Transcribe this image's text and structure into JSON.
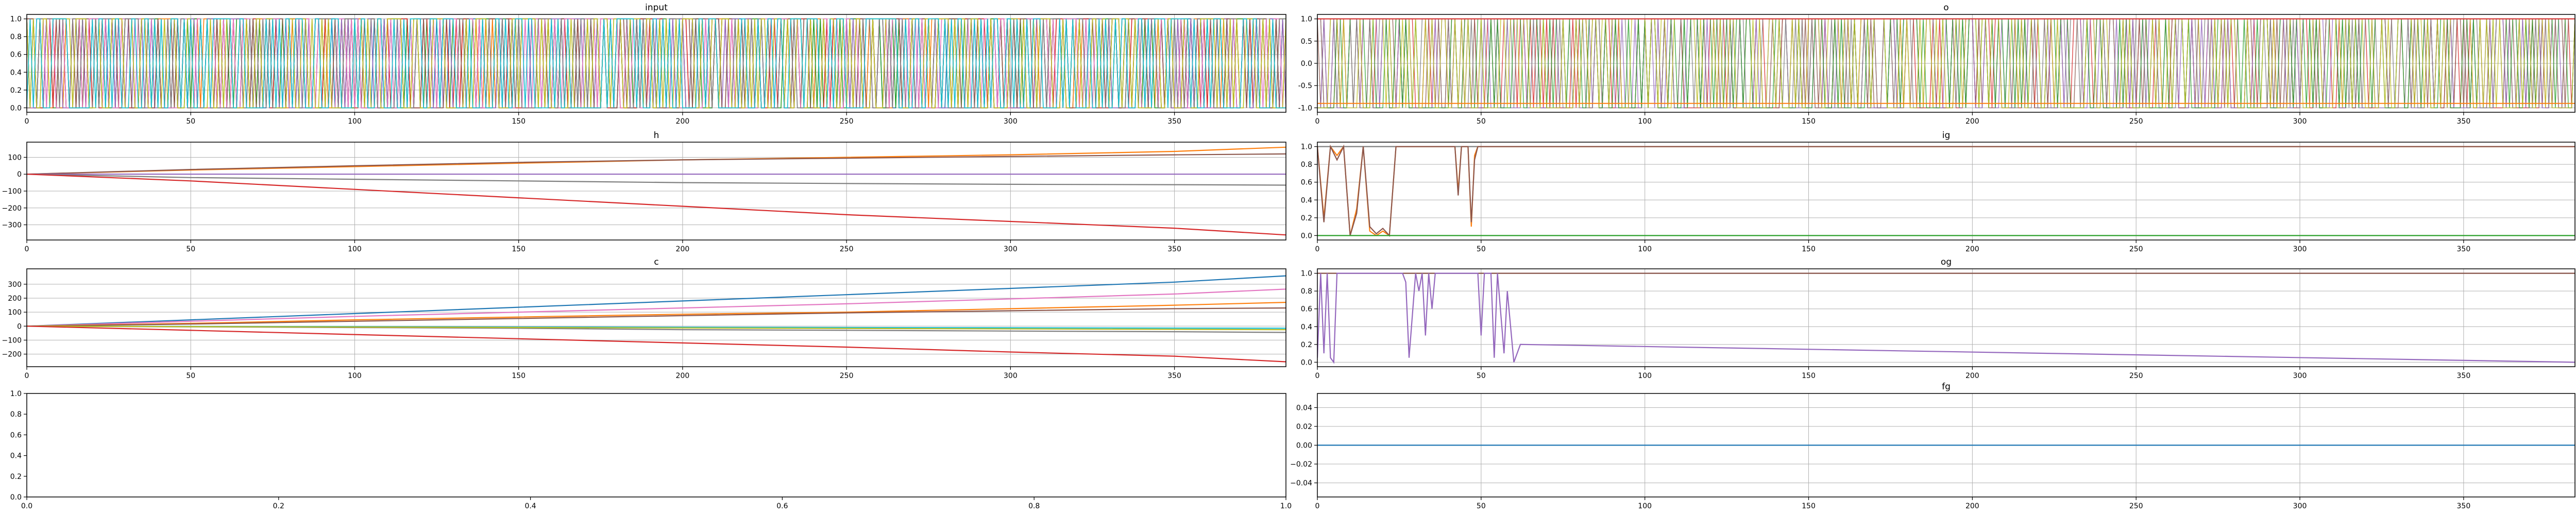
{
  "figure": {
    "colors": [
      "#1f77b4",
      "#ff7f0e",
      "#2ca02c",
      "#d62728",
      "#9467bd",
      "#8c564b",
      "#e377c2",
      "#7f7f7f",
      "#bcbd22",
      "#17becf"
    ]
  },
  "chart_data": [
    {
      "id": "input",
      "type": "line",
      "title": "input",
      "xlim": [
        0,
        384
      ],
      "ylim": [
        -0.05,
        1.05
      ],
      "xticks": [
        0,
        50,
        100,
        150,
        200,
        250,
        300,
        350
      ],
      "yticks": [
        0.0,
        0.2,
        0.4,
        0.6,
        0.8,
        1.0
      ],
      "ytick_labels": [
        "0.0",
        "0.2",
        "0.4",
        "0.6",
        "0.8",
        "1.0"
      ],
      "grid": true,
      "series_count": 10,
      "pattern": "dense binary 0/1 switching on every step, one active channel per step",
      "x": [
        0,
        384
      ],
      "series": [
        {
          "values": [
            0,
            1
          ]
        }
      ]
    },
    {
      "id": "o",
      "type": "line",
      "title": "o",
      "xlim": [
        0,
        384
      ],
      "ylim": [
        -1.1,
        1.1
      ],
      "xticks": [
        0,
        50,
        100,
        150,
        200,
        250,
        300,
        350
      ],
      "yticks": [
        -1.0,
        -0.5,
        0.0,
        0.5,
        1.0
      ],
      "ytick_labels": [
        "-1.0",
        "-0.5",
        "0.0",
        "0.5",
        "1.0"
      ],
      "grid": true,
      "pattern": "dense switching between -1 and 1",
      "series": [
        {
          "color_index": 3,
          "x": [
            0,
            384
          ],
          "values": [
            1,
            1
          ]
        },
        {
          "color_index": 1,
          "x": [
            0,
            384
          ],
          "values": [
            -0.9,
            -0.9
          ]
        }
      ]
    },
    {
      "id": "h",
      "type": "line",
      "title": "h",
      "xlim": [
        0,
        384
      ],
      "ylim": [
        -390,
        190
      ],
      "xticks": [
        0,
        50,
        100,
        150,
        200,
        250,
        300,
        350
      ],
      "yticks": [
        -300,
        -200,
        -100,
        0,
        100
      ],
      "ytick_labels": [
        "−300",
        "−200",
        "−100",
        "0",
        "100"
      ],
      "grid": true,
      "series": [
        {
          "color_index": 1,
          "x": [
            0,
            50,
            100,
            150,
            200,
            250,
            300,
            350,
            384
          ],
          "values": [
            0,
            25,
            45,
            65,
            85,
            100,
            115,
            135,
            160
          ]
        },
        {
          "color_index": 5,
          "x": [
            0,
            50,
            100,
            150,
            200,
            250,
            300,
            350,
            384
          ],
          "values": [
            0,
            28,
            50,
            70,
            85,
            95,
            105,
            115,
            120
          ]
        },
        {
          "color_index": 4,
          "x": [
            0,
            384
          ],
          "values": [
            0,
            0
          ]
        },
        {
          "color_index": 7,
          "x": [
            0,
            50,
            100,
            150,
            200,
            250,
            300,
            350,
            384
          ],
          "values": [
            0,
            -20,
            -30,
            -40,
            -50,
            -55,
            -60,
            -62,
            -65
          ]
        },
        {
          "color_index": 3,
          "x": [
            0,
            50,
            100,
            150,
            200,
            250,
            300,
            350,
            384
          ],
          "values": [
            0,
            -40,
            -90,
            -140,
            -190,
            -240,
            -280,
            -320,
            -360
          ]
        }
      ]
    },
    {
      "id": "ig",
      "type": "line",
      "title": "ig",
      "xlim": [
        0,
        384
      ],
      "ylim": [
        -0.05,
        1.05
      ],
      "xticks": [
        0,
        50,
        100,
        150,
        200,
        250,
        300,
        350
      ],
      "yticks": [
        0.0,
        0.2,
        0.4,
        0.6,
        0.8,
        1.0
      ],
      "ytick_labels": [
        "0.0",
        "0.2",
        "0.4",
        "0.6",
        "0.8",
        "1.0"
      ],
      "grid": true,
      "series": [
        {
          "color_index": 7,
          "x": [
            0,
            384
          ],
          "values": [
            1,
            1
          ]
        },
        {
          "color_index": 1,
          "x": [
            0,
            2,
            4,
            6,
            8,
            10,
            12,
            14,
            16,
            18,
            20,
            22,
            24,
            42,
            43,
            44,
            46,
            47,
            48,
            49,
            50,
            384
          ],
          "values": [
            1,
            0.2,
            1,
            0.9,
            1,
            0,
            0.3,
            1,
            0.05,
            0,
            0.05,
            0,
            1,
            1,
            0.5,
            1,
            1,
            0.1,
            0.9,
            1,
            1,
            1
          ]
        },
        {
          "color_index": 5,
          "x": [
            0,
            2,
            4,
            6,
            8,
            10,
            12,
            14,
            16,
            18,
            20,
            22,
            24,
            42,
            43,
            44,
            46,
            47,
            48,
            49,
            50,
            384
          ],
          "values": [
            1,
            0.15,
            1,
            0.85,
            1,
            0,
            0.25,
            1,
            0.1,
            0.02,
            0.08,
            0,
            1,
            1,
            0.45,
            1,
            1,
            0.15,
            0.85,
            1,
            1,
            1
          ]
        },
        {
          "color_index": 2,
          "x": [
            0,
            384
          ],
          "values": [
            0,
            0
          ]
        }
      ]
    },
    {
      "id": "c",
      "type": "line",
      "title": "c",
      "xlim": [
        0,
        384
      ],
      "ylim": [
        -290,
        410
      ],
      "xticks": [
        0,
        50,
        100,
        150,
        200,
        250,
        300,
        350
      ],
      "yticks": [
        -200,
        -100,
        0,
        100,
        200,
        300
      ],
      "ytick_labels": [
        "−200",
        "−100",
        "0",
        "100",
        "200",
        "300"
      ],
      "grid": true,
      "series": [
        {
          "color_index": 0,
          "x": [
            0,
            50,
            100,
            150,
            200,
            250,
            300,
            350,
            384
          ],
          "values": [
            0,
            45,
            90,
            135,
            180,
            225,
            270,
            315,
            360
          ]
        },
        {
          "color_index": 6,
          "x": [
            0,
            50,
            100,
            150,
            200,
            250,
            300,
            350,
            384
          ],
          "values": [
            0,
            35,
            70,
            100,
            130,
            160,
            195,
            230,
            265
          ]
        },
        {
          "color_index": 1,
          "x": [
            0,
            50,
            100,
            150,
            200,
            250,
            300,
            350,
            384
          ],
          "values": [
            0,
            20,
            45,
            65,
            85,
            100,
            125,
            150,
            170
          ]
        },
        {
          "color_index": 5,
          "x": [
            0,
            50,
            100,
            150,
            200,
            250,
            300,
            350,
            384
          ],
          "values": [
            0,
            15,
            35,
            55,
            75,
            95,
            110,
            125,
            130
          ]
        },
        {
          "color_index": 7,
          "x": [
            0,
            50,
            100,
            150,
            200,
            250,
            300,
            350,
            384
          ],
          "values": [
            0,
            -5,
            -10,
            -15,
            -25,
            -30,
            -35,
            -40,
            -45
          ]
        },
        {
          "color_index": 9,
          "x": [
            0,
            384
          ],
          "values": [
            0,
            -15
          ]
        },
        {
          "color_index": 8,
          "x": [
            0,
            384
          ],
          "values": [
            0,
            -25
          ]
        },
        {
          "color_index": 3,
          "x": [
            0,
            50,
            100,
            150,
            200,
            250,
            300,
            350,
            384
          ],
          "values": [
            0,
            -30,
            -60,
            -90,
            -120,
            -150,
            -185,
            -215,
            -255
          ]
        }
      ]
    },
    {
      "id": "og",
      "type": "line",
      "title": "og",
      "xlim": [
        0,
        384
      ],
      "ylim": [
        -0.05,
        1.05
      ],
      "xticks": [
        0,
        50,
        100,
        150,
        200,
        250,
        300,
        350
      ],
      "yticks": [
        0.0,
        0.2,
        0.4,
        0.6,
        0.8,
        1.0
      ],
      "ytick_labels": [
        "0.0",
        "0.2",
        "0.4",
        "0.6",
        "0.8",
        "1.0"
      ],
      "grid": true,
      "series": [
        {
          "color_index": 7,
          "x": [
            0,
            384
          ],
          "values": [
            1,
            1
          ]
        },
        {
          "color_index": 5,
          "x": [
            0,
            384
          ],
          "values": [
            1,
            1
          ]
        },
        {
          "color_index": 4,
          "x": [
            0,
            1,
            2,
            3,
            4,
            5,
            6,
            26,
            27,
            28,
            30,
            31,
            32,
            33,
            34,
            35,
            36,
            49,
            50,
            51,
            53,
            54,
            55,
            57,
            58,
            60,
            62,
            384
          ],
          "values": [
            0.05,
            1,
            0.1,
            1,
            0.05,
            0,
            1,
            1,
            0.9,
            0.05,
            1,
            0.8,
            1,
            0.3,
            1,
            0.6,
            1,
            1,
            0.3,
            1,
            1,
            0.05,
            1,
            0.1,
            0.8,
            0,
            0.2,
            0
          ]
        }
      ]
    },
    {
      "id": "blank",
      "type": "line",
      "title": "",
      "xlim": [
        0,
        1
      ],
      "ylim": [
        0,
        1
      ],
      "xticks": [
        0,
        0.2,
        0.4,
        0.6,
        0.8,
        1.0
      ],
      "xtick_labels": [
        "0.0",
        "0.2",
        "0.4",
        "0.6",
        "0.8",
        "1.0"
      ],
      "yticks": [
        0,
        0.2,
        0.4,
        0.6,
        0.8,
        1.0
      ],
      "ytick_labels": [
        "0.0",
        "0.2",
        "0.4",
        "0.6",
        "0.8",
        "1.0"
      ],
      "grid": false,
      "series": []
    },
    {
      "id": "fg",
      "type": "line",
      "title": "fg",
      "xlim": [
        0,
        384
      ],
      "ylim": [
        -0.055,
        0.055
      ],
      "xticks": [
        0,
        50,
        100,
        150,
        200,
        250,
        300,
        350
      ],
      "yticks": [
        -0.04,
        -0.02,
        0.0,
        0.02,
        0.04
      ],
      "ytick_labels": [
        "−0.04",
        "−0.02",
        "0.00",
        "0.02",
        "0.04"
      ],
      "grid": true,
      "series": [
        {
          "color_index": 0,
          "x": [
            0,
            384
          ],
          "values": [
            0,
            0
          ]
        }
      ]
    }
  ]
}
